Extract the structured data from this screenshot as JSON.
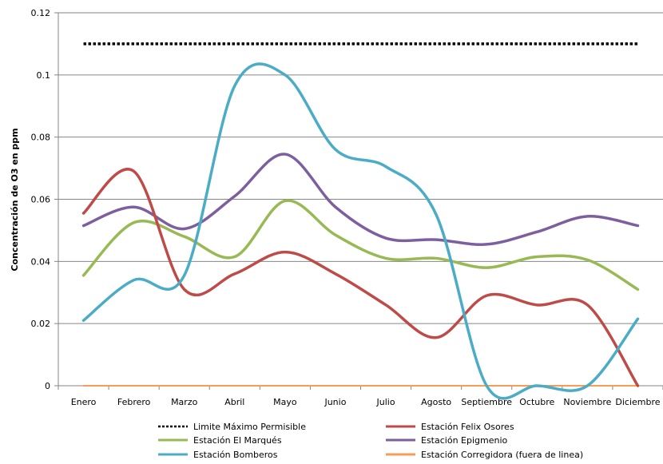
{
  "chart_data": {
    "type": "line",
    "title": "",
    "xlabel": "",
    "ylabel": "Concentración de O3 en ppm",
    "ylim": [
      0,
      0.12
    ],
    "yticks": [
      "0",
      "0.02",
      "0.04",
      "0.06",
      "0.08",
      "0.1",
      "0.12"
    ],
    "grid": true,
    "legend_position": "bottom",
    "categories": [
      "Enero",
      "Febrero",
      "Marzo",
      "Abril",
      "Mayo",
      "Junio",
      "Julio",
      "Agosto",
      "Septiembre",
      "Octubre",
      "Noviembre",
      "Diciembre"
    ],
    "series": [
      {
        "name": "Limite Máximo  Permisible",
        "color": "#000000",
        "style": "dotted",
        "values": [
          0.11,
          0.11,
          0.11,
          0.11,
          0.11,
          0.11,
          0.11,
          0.11,
          0.11,
          0.11,
          0.11,
          0.11
        ]
      },
      {
        "name": "Estación Felix Osores",
        "color": "#be4b48",
        "style": "solid",
        "values": [
          0.0555,
          0.069,
          0.031,
          0.036,
          0.043,
          0.036,
          0.026,
          0.0155,
          0.029,
          0.026,
          0.026,
          0.0
        ]
      },
      {
        "name": "Estación El Marqués",
        "color": "#98b954",
        "style": "solid",
        "values": [
          0.0355,
          0.0525,
          0.048,
          0.0415,
          0.0595,
          0.0485,
          0.041,
          0.041,
          0.038,
          0.0415,
          0.0405,
          0.031
        ]
      },
      {
        "name": "Estación Epigmenio",
        "color": "#7d5fa0",
        "style": "solid",
        "values": [
          0.0515,
          0.0575,
          0.0505,
          0.061,
          0.0745,
          0.0575,
          0.0475,
          0.047,
          0.0455,
          0.0495,
          0.0545,
          0.0515
        ]
      },
      {
        "name": "Estación Bomberos",
        "color": "#4bacc6",
        "style": "solid",
        "values": [
          0.021,
          0.034,
          0.0355,
          0.0965,
          0.1,
          0.076,
          0.0705,
          0.055,
          0.0,
          0.0,
          0.0,
          0.0215
        ]
      },
      {
        "name": "Estación Corregidora (fuera de linea)",
        "color": "#f59d56",
        "style": "solid",
        "values": [
          0,
          0,
          0,
          0,
          0,
          0,
          0,
          0,
          0,
          0,
          0,
          0
        ]
      }
    ]
  }
}
